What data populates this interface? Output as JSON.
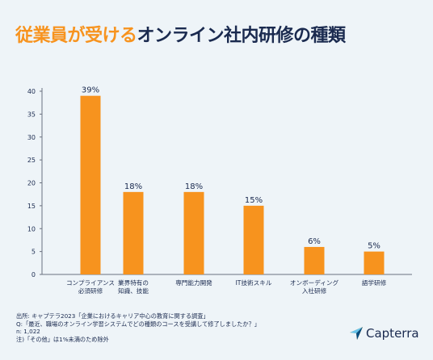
{
  "title": {
    "highlight": "従業員が受ける",
    "rest": "オンライン社内研修の種類"
  },
  "colors": {
    "bar": "#f7931e",
    "text": "#1a2a4f",
    "axis": "#6b7280",
    "background": "#eef4f8"
  },
  "chart_data": {
    "type": "bar",
    "categories": [
      [
        "コンプライアンス",
        "必須研修"
      ],
      [
        "業界特有の",
        "知識、技能"
      ],
      [
        "専門能力開発"
      ],
      [
        "IT技術スキル"
      ],
      [
        "オンボーディング",
        "入社研修"
      ],
      [
        "語学研修"
      ]
    ],
    "values": [
      39,
      18,
      18,
      15,
      6,
      5
    ],
    "value_labels": [
      "39%",
      "18%",
      "18%",
      "15%",
      "6%",
      "5%"
    ],
    "yticks": [
      0,
      5,
      10,
      15,
      20,
      25,
      30,
      35,
      40
    ],
    "ylim": [
      0,
      40
    ],
    "grid": false
  },
  "footnotes": [
    "出所: キャプテラ2023「企業におけるキャリア中心の教育に関する調査」",
    "Q:「最近、職場のオンライン学習システムでどの種類のコースを受講して修了しましたか？」",
    "n: 1,022",
    "注)「その他」は1%未満のため除外"
  ],
  "logo": {
    "icon": "capterra-arrow-icon",
    "text": "Capterra"
  }
}
